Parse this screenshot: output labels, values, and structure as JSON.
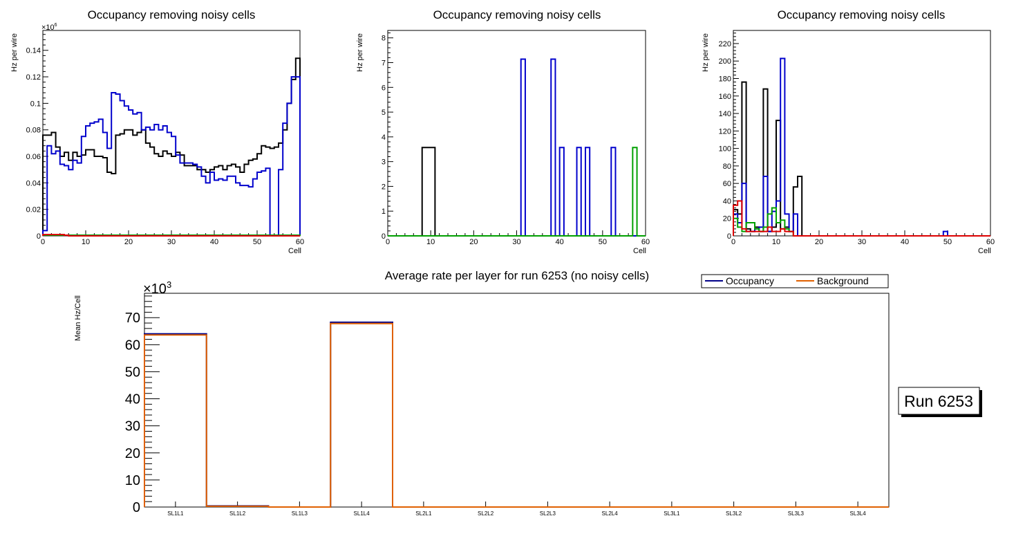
{
  "colors": {
    "black": "#000000",
    "blue": "#0000cc",
    "green": "#00a000",
    "red": "#dd0000",
    "orange": "#e06000",
    "navy": "#000088"
  },
  "charts": [
    {
      "type": "histogram",
      "title": "Occupancy removing noisy cells",
      "xlabel": "Cell",
      "ylabel": "Hz per wire",
      "multiplier": "×10",
      "multiplier_exp": "6",
      "xlim": [
        0,
        60
      ],
      "ylim": [
        0,
        0.155
      ],
      "xticks": [
        "0",
        "10",
        "20",
        "30",
        "40",
        "50",
        "60"
      ],
      "yticks": [
        "0",
        "0.02",
        "0.04",
        "0.06",
        "0.08",
        "0.1",
        "0.12",
        "0.14"
      ],
      "series": [
        {
          "name": "black",
          "color": "#000000",
          "values": [
            0.076,
            0.076,
            0.078,
            0.067,
            0.06,
            0.063,
            0.057,
            0.063,
            0.06,
            0.061,
            0.065,
            0.065,
            0.06,
            0.06,
            0.059,
            0.048,
            0.047,
            0.076,
            0.077,
            0.08,
            0.08,
            0.076,
            0.078,
            0.08,
            0.07,
            0.067,
            0.062,
            0.06,
            0.064,
            0.062,
            0.06,
            0.063,
            0.061,
            0.053,
            0.053,
            0.053,
            0.05,
            0.05,
            0.048,
            0.05,
            0.052,
            0.053,
            0.05,
            0.053,
            0.054,
            0.052,
            0.048,
            0.054,
            0.057,
            0.058,
            0.062,
            0.068,
            0.067,
            0.066,
            0.067,
            0.07,
            0.08,
            0.1,
            0.118,
            0.134
          ]
        },
        {
          "name": "blue",
          "color": "#0000cc",
          "values": [
            0.004,
            0.068,
            0.062,
            0.064,
            0.054,
            0.053,
            0.05,
            0.057,
            0.055,
            0.075,
            0.083,
            0.085,
            0.086,
            0.088,
            0.078,
            0.066,
            0.108,
            0.107,
            0.102,
            0.098,
            0.095,
            0.092,
            0.093,
            0.08,
            0.082,
            0.08,
            0.084,
            0.08,
            0.083,
            0.078,
            0.075,
            0.061,
            0.055,
            0.055,
            0.055,
            0.054,
            0.052,
            0.045,
            0.04,
            0.048,
            0.042,
            0.043,
            0.042,
            0.045,
            0.045,
            0.04,
            0.038,
            0.038,
            0.037,
            0.043,
            0.048,
            0.049,
            0.051,
            0.0,
            0.0,
            0.05,
            0.085,
            0.1,
            0.12,
            0.12
          ]
        },
        {
          "name": "green",
          "color": "#00a000",
          "values": [
            0.0005,
            0.0005,
            0.0005,
            0.0005,
            0.0005,
            0.0005,
            0.0005,
            0.0005,
            0.0005,
            0.0005,
            0.0005,
            0.0005,
            0.0005,
            0.0005,
            0.0005,
            0.0005,
            0.0005,
            0.0005,
            0.0005,
            0.0005,
            0.0005,
            0.0005,
            0.0005,
            0.0005,
            0.0005,
            0.0005,
            0.0005,
            0.0005,
            0.0005,
            0.0005,
            0.0005,
            0.0005,
            0.0005,
            0.0005,
            0.0005,
            0.0005,
            0.0005,
            0.0005,
            0.0005,
            0.0005,
            0.0005,
            0.0005,
            0.0005,
            0.0005,
            0.0005,
            0.0005,
            0.0005,
            0.0005,
            0.0005,
            0.0005,
            0.0005,
            0.0005,
            0.0005,
            0.0005,
            0.0005,
            0.0005,
            0.0005,
            0.0005,
            0.0005,
            0.0005
          ]
        },
        {
          "name": "red",
          "color": "#dd0000",
          "values": [
            0.001,
            0.001,
            0.001,
            0.001,
            0.001,
            0.0005,
            0,
            0,
            0,
            0,
            0,
            0,
            0,
            0,
            0,
            0,
            0,
            0,
            0,
            0,
            0,
            0,
            0,
            0,
            0,
            0,
            0,
            0,
            0,
            0,
            0,
            0,
            0,
            0,
            0,
            0,
            0,
            0,
            0,
            0,
            0,
            0,
            0,
            0,
            0,
            0,
            0,
            0,
            0,
            0,
            0,
            0,
            0,
            0,
            0,
            0,
            0,
            0,
            0,
            0
          ]
        }
      ]
    },
    {
      "type": "histogram",
      "title": "Occupancy removing noisy cells",
      "xlabel": "Cell",
      "ylabel": "Hz per wire",
      "xlim": [
        0,
        60
      ],
      "ylim": [
        0,
        8.3
      ],
      "xticks": [
        "0",
        "10",
        "20",
        "30",
        "40",
        "50",
        "60"
      ],
      "yticks": [
        "0",
        "1",
        "2",
        "3",
        "4",
        "5",
        "6",
        "7",
        "8"
      ],
      "series": [
        {
          "name": "black",
          "color": "#000000",
          "values": [
            0,
            0,
            0,
            0,
            0,
            0,
            0,
            0,
            3.57,
            3.57,
            3.57,
            0,
            0,
            0,
            0,
            0,
            0,
            0,
            0,
            0,
            0,
            0,
            0,
            0,
            0,
            0,
            0,
            0,
            0,
            0,
            0,
            0,
            0,
            0,
            0,
            0,
            0,
            0,
            0,
            0,
            0,
            0,
            0,
            0,
            0,
            0,
            0,
            0,
            0,
            0,
            0,
            0,
            0,
            0,
            0,
            0,
            0,
            0,
            0,
            0
          ]
        },
        {
          "name": "blue",
          "color": "#0000cc",
          "values": [
            0,
            0,
            0,
            0,
            0,
            0,
            0,
            0,
            0,
            0,
            0,
            0,
            0,
            0,
            0,
            0,
            0,
            0,
            0,
            0,
            0,
            0,
            0,
            0,
            0,
            0,
            0,
            0,
            0,
            0,
            0,
            7.14,
            0,
            0,
            0,
            0,
            0,
            0,
            7.14,
            0,
            3.57,
            0,
            0,
            0,
            3.57,
            0,
            3.57,
            0,
            0,
            0,
            0,
            0,
            3.57,
            0,
            0,
            0,
            0,
            0,
            0,
            0
          ]
        },
        {
          "name": "green",
          "color": "#00a000",
          "values": [
            0,
            0,
            0,
            0,
            0,
            0,
            0,
            0,
            0,
            0,
            0,
            0,
            0,
            0,
            0,
            0,
            0,
            0,
            0,
            0,
            0,
            0,
            0,
            0,
            0,
            0,
            0,
            0,
            0,
            0,
            0,
            0,
            0,
            0,
            0,
            0,
            0,
            0,
            0,
            0,
            0,
            0,
            0,
            0,
            0,
            0,
            0,
            0,
            0,
            0,
            0,
            0,
            0,
            0,
            0,
            0,
            0,
            3.57,
            0,
            0
          ]
        }
      ]
    },
    {
      "type": "histogram",
      "title": "Occupancy removing noisy cells",
      "xlabel": "Cell",
      "ylabel": "Hz per wire",
      "xlim": [
        0,
        60
      ],
      "ylim": [
        0,
        235
      ],
      "xticks": [
        "0",
        "10",
        "20",
        "30",
        "40",
        "50",
        "60"
      ],
      "yticks": [
        "0",
        "20",
        "40",
        "60",
        "80",
        "100",
        "120",
        "140",
        "160",
        "180",
        "200",
        "220"
      ],
      "series": [
        {
          "name": "black",
          "color": "#000000",
          "values": [
            30,
            25,
            176,
            8,
            5,
            10,
            5,
            168,
            5,
            10,
            132,
            8,
            10,
            5,
            56,
            68,
            0,
            0,
            0,
            0,
            0,
            0,
            0,
            0,
            0,
            0,
            0,
            0,
            0,
            0,
            0,
            0,
            0,
            0,
            0,
            0,
            0,
            0,
            0,
            0,
            0,
            0,
            0,
            0,
            0,
            0,
            0,
            0,
            0,
            0,
            0,
            0,
            0,
            0,
            0,
            0,
            0,
            0,
            0,
            0
          ]
        },
        {
          "name": "blue",
          "color": "#0000cc",
          "values": [
            25,
            15,
            60,
            5,
            5,
            8,
            10,
            68,
            5,
            28,
            40,
            203,
            25,
            5,
            25,
            0,
            0,
            0,
            0,
            0,
            0,
            0,
            0,
            0,
            0,
            0,
            0,
            0,
            0,
            0,
            0,
            0,
            0,
            0,
            0,
            0,
            0,
            0,
            0,
            0,
            0,
            0,
            0,
            0,
            0,
            0,
            0,
            0,
            0,
            5,
            0,
            0,
            0,
            0,
            0,
            0,
            0,
            0,
            0,
            0
          ]
        },
        {
          "name": "green",
          "color": "#00a000",
          "values": [
            20,
            10,
            5,
            15,
            15,
            8,
            5,
            10,
            25,
            32,
            15,
            18,
            8,
            5,
            0,
            0,
            0,
            0,
            0,
            0,
            0,
            0,
            0,
            0,
            0,
            0,
            0,
            0,
            0,
            0,
            0,
            0,
            0,
            0,
            0,
            0,
            0,
            0,
            0,
            0,
            0,
            0,
            0,
            0,
            0,
            0,
            0,
            0,
            0,
            0,
            0,
            0,
            0,
            0,
            0,
            0,
            0,
            0,
            0,
            0
          ]
        },
        {
          "name": "red",
          "color": "#dd0000",
          "values": [
            35,
            40,
            8,
            5,
            5,
            5,
            5,
            5,
            10,
            5,
            5,
            8,
            5,
            5,
            0,
            0,
            0,
            0,
            0,
            0,
            0,
            0,
            0,
            0,
            0,
            0,
            0,
            0,
            0,
            0,
            0,
            0,
            0,
            0,
            0,
            0,
            0,
            0,
            0,
            0,
            0,
            0,
            0,
            0,
            0,
            0,
            0,
            0,
            0,
            0,
            0,
            0,
            0,
            0,
            0,
            0,
            0,
            0,
            0,
            0
          ]
        }
      ]
    },
    {
      "type": "bar",
      "title": "Average rate per layer for run 6253 (no noisy cells)",
      "xlabel": "",
      "ylabel": "Mean Hz/Cell",
      "multiplier": "×10",
      "multiplier_exp": "3",
      "ylim": [
        0,
        79
      ],
      "yticks": [
        "0",
        "10",
        "20",
        "30",
        "40",
        "50",
        "60",
        "70"
      ],
      "categories": [
        "SL1L1",
        "SL1L2",
        "SL1L3",
        "SL1L4",
        "SL2L1",
        "SL2L2",
        "SL2L3",
        "SL2L4",
        "SL3L1",
        "SL3L2",
        "SL3L3",
        "SL3L4"
      ],
      "series": [
        {
          "name": "Occupancy",
          "color": "#000088",
          "values": [
            64,
            0.4,
            0,
            68.3,
            0,
            0,
            0,
            0,
            0,
            0,
            0,
            0
          ]
        },
        {
          "name": "Background",
          "color": "#e06000",
          "values": [
            63.6,
            0.3,
            0,
            67.8,
            0,
            0,
            0,
            0,
            0,
            0,
            0,
            0
          ]
        }
      ],
      "legend": [
        "Occupancy",
        "Background"
      ]
    }
  ],
  "run_label": "Run 6253"
}
